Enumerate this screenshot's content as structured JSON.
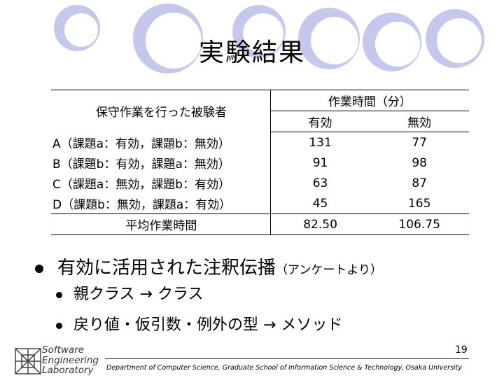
{
  "slide": {
    "title": "実験結果",
    "page_number": "19",
    "department": "Department of Computer Science, Graduate School of Information Science & Technology, Osaka University"
  },
  "logo": {
    "line1": "Software",
    "line2": "Engineering",
    "line3": "Laboratory"
  },
  "table": {
    "subject_header": "保守作業を行った被験者",
    "time_header": "作業時間（分）",
    "col_valid": "有効",
    "col_invalid": "無効",
    "rows": [
      {
        "subject": "A（課題a：有効，課題b：無効）",
        "valid": "131",
        "invalid": "77"
      },
      {
        "subject": "B（課題b：有効，課題a：無効）",
        "valid": "91",
        "invalid": "98"
      },
      {
        "subject": "C（課題a：無効，課題b：有効）",
        "valid": "63",
        "invalid": "87"
      },
      {
        "subject": "D（課題b：無効，課題a：有効）",
        "valid": "45",
        "invalid": "165"
      }
    ],
    "avg_label": "平均作業時間",
    "avg_valid": "82.50",
    "avg_invalid": "106.75"
  },
  "bullets": {
    "main": "有効に活用された注釈伝播",
    "main_sub": "（アンケートより）",
    "items": [
      "親クラス → クラス",
      "戻り値・仮引数・例外の型 → メソッド"
    ]
  },
  "colors": {
    "ring": "#c5c8ec",
    "ring_inner": "#ffffff"
  }
}
